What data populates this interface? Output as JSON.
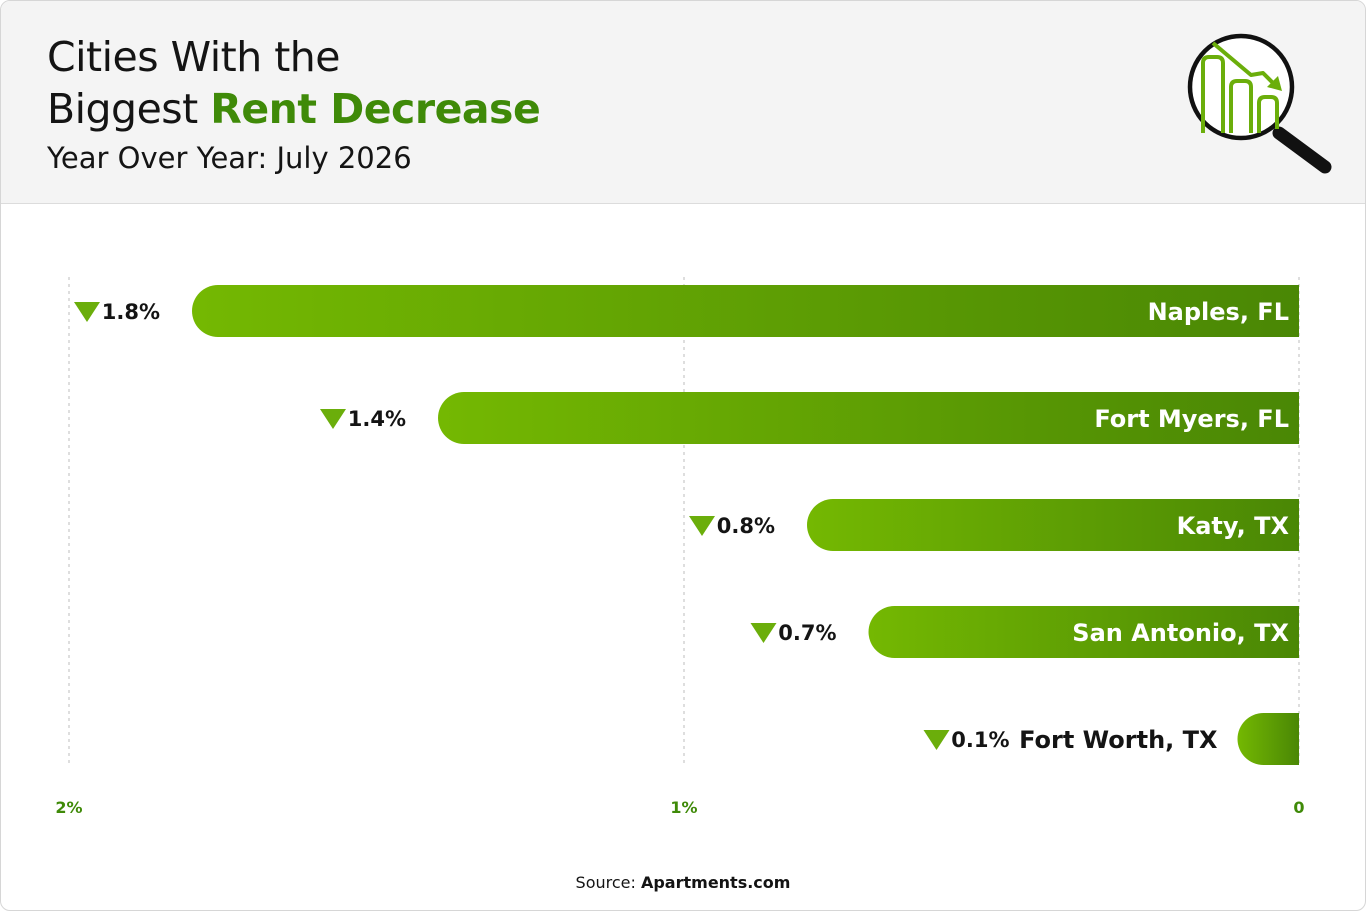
{
  "header": {
    "title_line1": "Cities With the",
    "title_line2_plain": "Biggest ",
    "title_line2_accent": "Rent Decrease",
    "subtitle": "Year Over Year: July 2026"
  },
  "source": {
    "label": "Source:",
    "name": "Apartments.com"
  },
  "colors": {
    "accent": "#3f8a08",
    "bar_light": "#74b802",
    "bar_dark": "#4a8705",
    "marker": "#6bae0b",
    "tick_label": "#3f8a08",
    "gridline": "#bdbdbd"
  },
  "icons": {
    "logo": "magnifier-declining-bars-icon",
    "decrease_marker": "down-triangle-icon"
  },
  "chart_data": {
    "type": "bar",
    "orientation": "horizontal",
    "direction": "right-to-left",
    "categories": [
      "Naples, FL",
      "Fort Myers, FL",
      "Katy, TX",
      "San Antonio, TX",
      "Fort Worth, TX"
    ],
    "values": [
      1.8,
      1.4,
      0.8,
      0.7,
      0.1
    ],
    "value_labels": [
      "1.8%",
      "1.4%",
      "0.8%",
      "0.7%",
      "0.1%"
    ],
    "xlim": [
      0,
      2
    ],
    "xticks": [
      2,
      1,
      0
    ],
    "xtick_labels": [
      "2%",
      "1%",
      "0"
    ],
    "grid": true
  }
}
